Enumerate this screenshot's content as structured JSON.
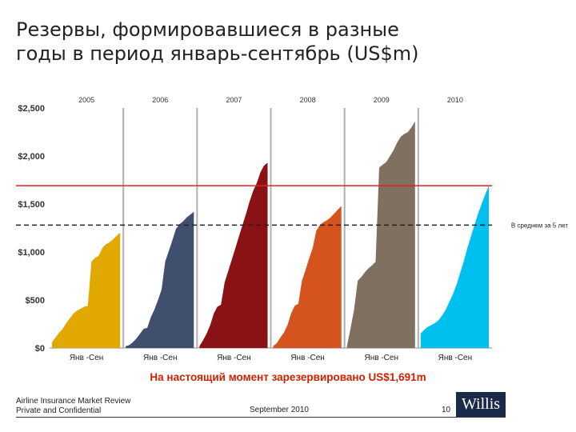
{
  "title_lines": [
    "Резервы, формировавшиеся в разные",
    "годы в период январь-сентябрь (US$m)"
  ],
  "chart_data": {
    "type": "area",
    "title": "Резервы, формировавшиеся в разные годы в период январь-сентябрь (US$m)",
    "ylim": [
      0,
      2500
    ],
    "y_ticks": [
      0,
      500,
      1000,
      1500,
      2000,
      2500
    ],
    "y_tick_labels": [
      "$0",
      "$500",
      "$1,000",
      "$1,500",
      "$2,000",
      "$2,500"
    ],
    "x_label_period": "Янв -Сен",
    "series": [
      {
        "name": "2005",
        "color": "#e0a800",
        "values": [
          60,
          110,
          160,
          200,
          260,
          310,
          360,
          390,
          410,
          430,
          440,
          900,
          940,
          960,
          1040,
          1080,
          1100,
          1130,
          1170,
          1200
        ]
      },
      {
        "name": "2006",
        "color": "#3f4f6d",
        "values": [
          20,
          30,
          60,
          100,
          150,
          200,
          210,
          320,
          400,
          500,
          610,
          900,
          1010,
          1120,
          1240,
          1290,
          1320,
          1360,
          1390,
          1420
        ]
      },
      {
        "name": "2007",
        "color": "#8a1114",
        "values": [
          20,
          80,
          150,
          240,
          360,
          430,
          450,
          680,
          800,
          920,
          1040,
          1160,
          1280,
          1400,
          1530,
          1640,
          1720,
          1830,
          1900,
          1930
        ]
      },
      {
        "name": "2008",
        "color": "#d4531f",
        "values": [
          20,
          50,
          110,
          160,
          240,
          360,
          440,
          460,
          700,
          810,
          930,
          1040,
          1220,
          1280,
          1310,
          1330,
          1360,
          1400,
          1440,
          1480
        ]
      },
      {
        "name": "2009",
        "color": "#807060",
        "values": [
          20,
          200,
          400,
          700,
          740,
          790,
          830,
          860,
          900,
          1880,
          1910,
          1940,
          2000,
          2060,
          2140,
          2200,
          2230,
          2250,
          2300,
          2360
        ]
      },
      {
        "name": "2010",
        "color": "#00c0f0",
        "values": [
          150,
          190,
          220,
          240,
          260,
          290,
          340,
          400,
          480,
          560,
          660,
          780,
          900,
          1040,
          1160,
          1280,
          1400,
          1500,
          1600,
          1691
        ]
      }
    ],
    "reference_lines": [
      {
        "name": "current",
        "value": 1691,
        "color": "#e02020",
        "style": "solid"
      },
      {
        "name": "five_year_average",
        "value": 1280,
        "color": "#222222",
        "style": "dashed",
        "label": "В среднем за 5 лет"
      }
    ]
  },
  "annotation": "На настоящий момент зарезервировано US$1,691m",
  "footer": {
    "line1": "Airline Insurance Market Review",
    "line2": "Private and Confidential",
    "date": "September 2010",
    "page": "10",
    "logo": "Willis"
  }
}
